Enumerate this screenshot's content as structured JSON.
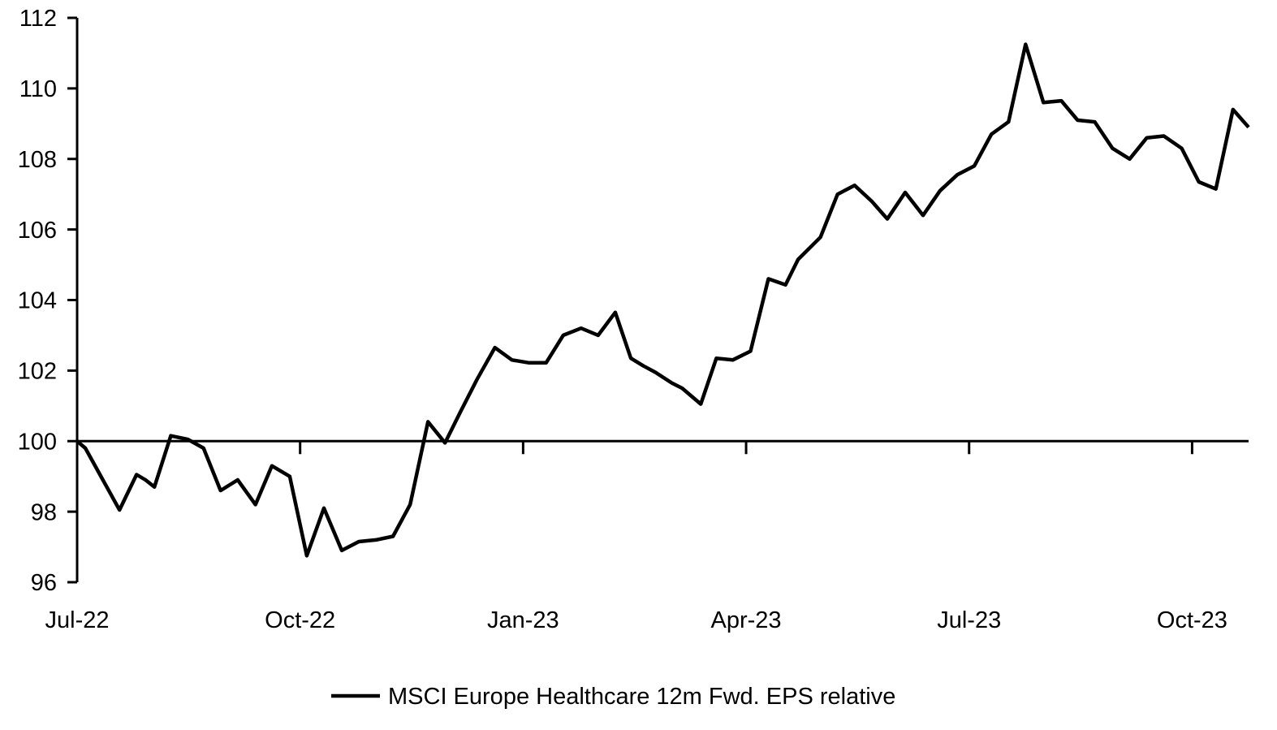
{
  "chart_data": {
    "type": "line",
    "title": "",
    "xlabel": "",
    "ylabel": "",
    "grid": "off",
    "baseline": 100,
    "legend_position": "bottom-center",
    "y_axis": {
      "ticks": [
        96,
        98,
        100,
        102,
        104,
        106,
        108,
        110,
        112
      ],
      "range": [
        96,
        112
      ]
    },
    "x_axis": {
      "tick_labels": [
        "Jul-22",
        "Oct-22",
        "Jan-23",
        "Apr-23",
        "Jul-23",
        "Oct-23"
      ],
      "tick_positions_months": [
        0,
        3,
        6,
        9,
        12,
        15
      ],
      "range_months": [
        0,
        15.76
      ]
    },
    "series": [
      {
        "name": "MSCI Europe Healthcare 12m Fwd. EPS relative",
        "color": "#000000",
        "points": [
          [
            0.0,
            100.0
          ],
          [
            0.11,
            99.8
          ],
          [
            0.57,
            98.05
          ],
          [
            0.8,
            99.05
          ],
          [
            0.92,
            98.9
          ],
          [
            1.04,
            98.7
          ],
          [
            1.26,
            100.15
          ],
          [
            1.49,
            100.05
          ],
          [
            1.7,
            99.8
          ],
          [
            1.93,
            98.6
          ],
          [
            2.16,
            98.9
          ],
          [
            2.4,
            98.2
          ],
          [
            2.62,
            99.3
          ],
          [
            2.86,
            99.0
          ],
          [
            3.09,
            96.75
          ],
          [
            3.32,
            98.1
          ],
          [
            3.56,
            96.9
          ],
          [
            3.79,
            97.15
          ],
          [
            4.02,
            97.2
          ],
          [
            4.25,
            97.3
          ],
          [
            4.48,
            98.2
          ],
          [
            4.72,
            100.55
          ],
          [
            4.95,
            99.95
          ],
          [
            5.15,
            100.8
          ],
          [
            5.38,
            101.75
          ],
          [
            5.62,
            102.65
          ],
          [
            5.85,
            102.3
          ],
          [
            6.08,
            102.22
          ],
          [
            6.31,
            102.22
          ],
          [
            6.54,
            103.0
          ],
          [
            6.78,
            103.2
          ],
          [
            7.01,
            103.0
          ],
          [
            7.24,
            103.65
          ],
          [
            7.45,
            102.35
          ],
          [
            7.62,
            102.13
          ],
          [
            7.78,
            101.95
          ],
          [
            8.0,
            101.65
          ],
          [
            8.14,
            101.5
          ],
          [
            8.39,
            101.05
          ],
          [
            8.6,
            102.35
          ],
          [
            8.82,
            102.3
          ],
          [
            9.06,
            102.55
          ],
          [
            9.3,
            104.6
          ],
          [
            9.53,
            104.43
          ],
          [
            9.7,
            105.15
          ],
          [
            10.0,
            105.78
          ],
          [
            10.23,
            107.0
          ],
          [
            10.46,
            107.25
          ],
          [
            10.69,
            106.8
          ],
          [
            10.9,
            106.3
          ],
          [
            11.14,
            107.05
          ],
          [
            11.38,
            106.4
          ],
          [
            11.61,
            107.1
          ],
          [
            11.84,
            107.55
          ],
          [
            12.07,
            107.8
          ],
          [
            12.3,
            108.7
          ],
          [
            12.53,
            109.05
          ],
          [
            12.76,
            111.25
          ],
          [
            13.0,
            109.6
          ],
          [
            13.24,
            109.65
          ],
          [
            13.46,
            109.1
          ],
          [
            13.69,
            109.05
          ],
          [
            13.93,
            108.3
          ],
          [
            14.16,
            108.0
          ],
          [
            14.39,
            108.6
          ],
          [
            14.62,
            108.65
          ],
          [
            14.86,
            108.3
          ],
          [
            15.09,
            107.35
          ],
          [
            15.32,
            107.15
          ],
          [
            15.55,
            109.4
          ],
          [
            15.76,
            108.9
          ]
        ]
      }
    ]
  },
  "colors": {
    "line": "#000000",
    "axis": "#000000",
    "text": "#000000",
    "background": "#ffffff"
  }
}
